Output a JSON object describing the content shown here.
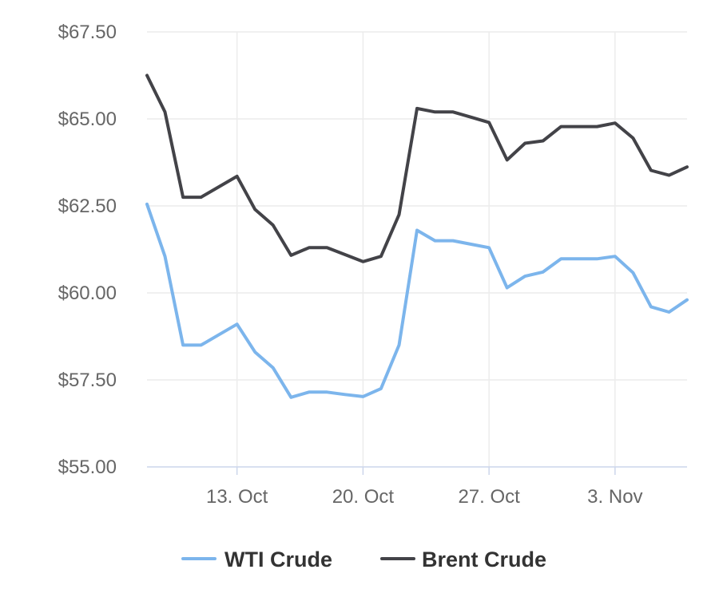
{
  "chart_data": {
    "type": "line",
    "title": "",
    "xlabel": "",
    "ylabel": "",
    "y_ticks": [
      "$55.00",
      "$57.50",
      "$60.00",
      "$62.50",
      "$65.00",
      "$67.50"
    ],
    "x_ticks": [
      "13. Oct",
      "20. Oct",
      "27. Oct",
      "3. Nov"
    ],
    "ylim": [
      55,
      67.5
    ],
    "xlim": [
      "2025-10-08",
      "2025-11-07"
    ],
    "grid": true,
    "legend_position": "bottom-center",
    "x": [
      "2025-10-08",
      "2025-10-09",
      "2025-10-10",
      "2025-10-11",
      "2025-10-12",
      "2025-10-13",
      "2025-10-14",
      "2025-10-15",
      "2025-10-16",
      "2025-10-17",
      "2025-10-18",
      "2025-10-19",
      "2025-10-20",
      "2025-10-21",
      "2025-10-22",
      "2025-10-23",
      "2025-10-24",
      "2025-10-25",
      "2025-10-26",
      "2025-10-27",
      "2025-10-28",
      "2025-10-29",
      "2025-10-30",
      "2025-10-31",
      "2025-11-01",
      "2025-11-02",
      "2025-11-03",
      "2025-11-04",
      "2025-11-05",
      "2025-11-06",
      "2025-11-07"
    ],
    "series": [
      {
        "name": "WTI Crude",
        "color": "#7cb5ec",
        "values": [
          62.55,
          61.05,
          58.5,
          58.5,
          58.8,
          59.1,
          58.3,
          57.85,
          57.0,
          57.15,
          57.15,
          57.08,
          57.02,
          57.25,
          58.5,
          61.8,
          61.5,
          61.5,
          61.4,
          61.3,
          60.15,
          60.48,
          60.6,
          60.98,
          60.98,
          60.98,
          61.05,
          60.58,
          59.6,
          59.45,
          59.8
        ]
      },
      {
        "name": "Brent Crude",
        "color": "#434348",
        "values": [
          66.25,
          65.2,
          62.75,
          62.75,
          63.05,
          63.35,
          62.4,
          61.95,
          61.08,
          61.3,
          61.3,
          61.1,
          60.9,
          61.05,
          62.25,
          65.3,
          65.2,
          65.2,
          65.05,
          64.9,
          63.82,
          64.3,
          64.37,
          64.78,
          64.78,
          64.78,
          64.88,
          64.45,
          63.52,
          63.38,
          63.62
        ]
      }
    ]
  }
}
